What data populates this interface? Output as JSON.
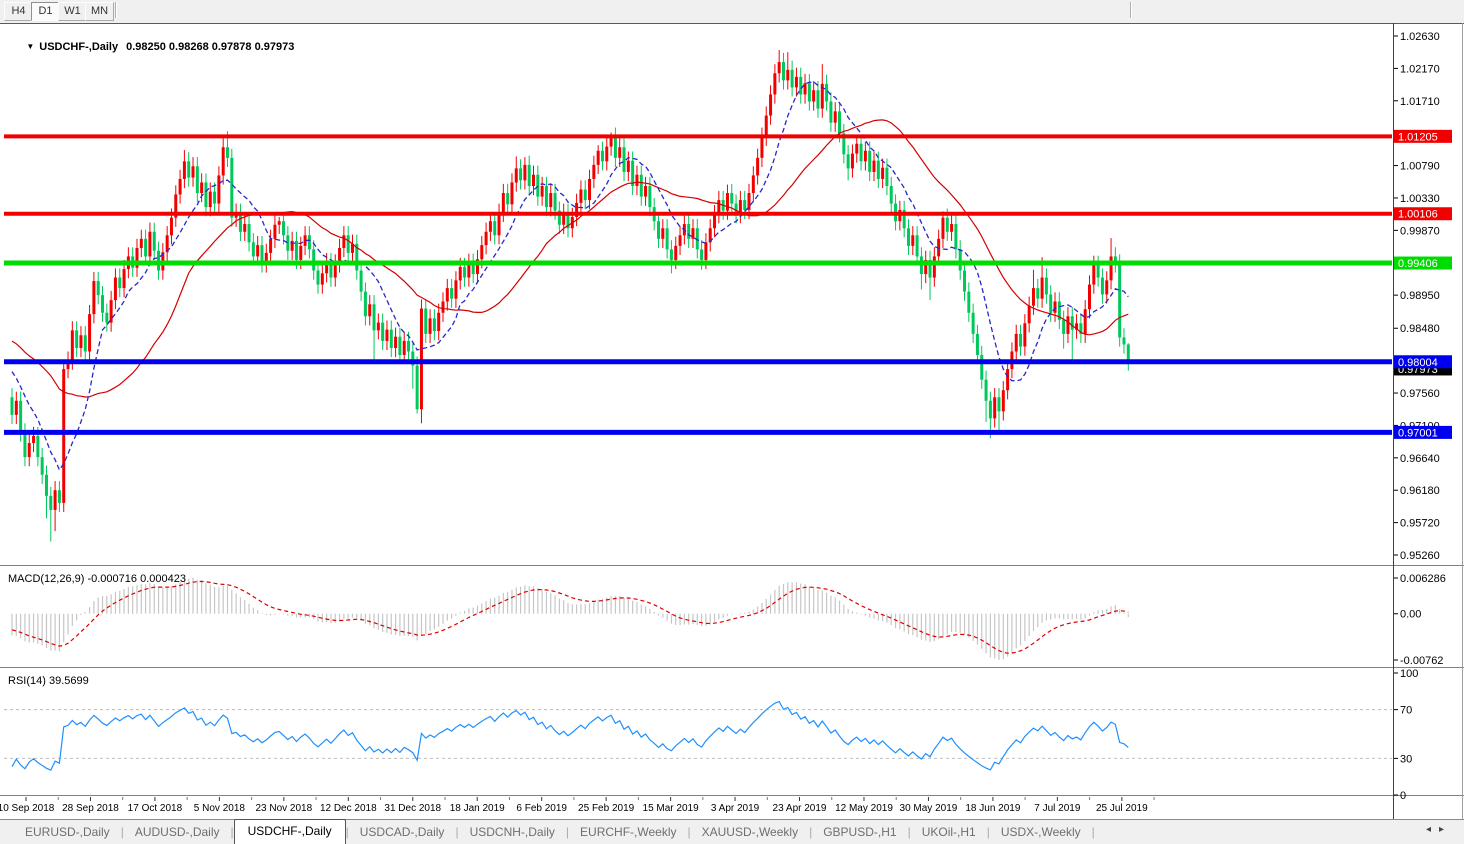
{
  "toolbar": {
    "buttons": [
      {
        "label": "H4",
        "active": false
      },
      {
        "label": "D1",
        "active": true
      },
      {
        "label": "W1",
        "active": false
      },
      {
        "label": "MN",
        "active": false
      }
    ]
  },
  "chart": {
    "title_symbol": "USDCHF-,Daily",
    "title_values": "0.98250 0.98268 0.97878 0.97973",
    "macd_label": "MACD(12,26,9) -0.000716 0.000423",
    "rsi_label": "RSI(14) 39.5699"
  },
  "price_axis": {
    "ticks": [
      "1.02630",
      "1.02170",
      "1.01710",
      "1.00790",
      "1.00330",
      "0.99870",
      "0.98950",
      "0.98480",
      "0.97560",
      "0.97100",
      "0.96640",
      "0.96180",
      "0.95720",
      "0.95260"
    ],
    "current_price": {
      "label": "0.97973",
      "bg": "#000000",
      "fg": "#ffffff"
    }
  },
  "macd_axis": {
    "top": "0.006286",
    "zero": "0.00",
    "bottom": "-0.00762"
  },
  "rsi_axis": {
    "labels": [
      "100",
      "70",
      "30",
      "0"
    ],
    "values": [
      100,
      70,
      30,
      0
    ],
    "level_lines": [
      70,
      30
    ]
  },
  "dates": [
    "10 Sep 2018",
    "28 Sep 2018",
    "17 Oct 2018",
    "5 Nov 2018",
    "23 Nov 2018",
    "12 Dec 2018",
    "31 Dec 2018",
    "18 Jan 2019",
    "6 Feb 2019",
    "25 Feb 2019",
    "15 Mar 2019",
    "3 Apr 2019",
    "23 Apr 2019",
    "12 May 2019",
    "30 May 2019",
    "18 Jun 2019",
    "7 Jul 2019",
    "25 Jul 2019"
  ],
  "tabs": {
    "items": [
      {
        "label": "EURUSD-,Daily",
        "active": false
      },
      {
        "label": "AUDUSD-,Daily",
        "active": false
      },
      {
        "label": "USDCHF-,Daily",
        "active": true
      },
      {
        "label": "USDCAD-,Daily",
        "active": false
      },
      {
        "label": "USDCNH-,Daily",
        "active": false
      },
      {
        "label": "EURCHF-,Weekly",
        "active": false
      },
      {
        "label": "XAUUSD-,Weekly",
        "active": false
      },
      {
        "label": "GBPUSD-,H1",
        "active": false
      },
      {
        "label": "UKOil-,H1",
        "active": false
      },
      {
        "label": "USDX-,Weekly",
        "active": false
      }
    ]
  },
  "tabs_nav": {
    "left": "◂",
    "right": "▸"
  },
  "chart_data": {
    "type": "candlestick",
    "symbol": "USDCHF",
    "timeframe": "Daily",
    "ohlc_display": {
      "open": 0.9825,
      "high": 0.98268,
      "low": 0.97878,
      "close": 0.97973
    },
    "indicators": {
      "ma_fast_period": 10,
      "ma_slow_period": 30,
      "macd": [
        12,
        26,
        9
      ],
      "macd_values": [
        -0.000716,
        0.000423
      ],
      "rsi_period": 14,
      "rsi_value": 39.5699
    },
    "price_range": {
      "top": 1.0263,
      "bottom": 0.9526
    },
    "levels": [
      {
        "price": 1.01205,
        "label": "1.01205",
        "color": "#f20000",
        "width": 4
      },
      {
        "price": 1.00106,
        "label": "1.00106",
        "color": "#f20000",
        "width": 4
      },
      {
        "price": 0.99406,
        "label": "0.99406",
        "color": "#00dc00",
        "width": 5
      },
      {
        "price": 0.98004,
        "label": "0.98004",
        "color": "#0000f0",
        "width": 5
      },
      {
        "price": 0.97001,
        "label": "0.97001",
        "color": "#0000f0",
        "width": 5
      }
    ],
    "colors": {
      "bull": "#f20000",
      "bear": "#00c85a",
      "ma_fast": "#2828c8",
      "ma_slow": "#d40000",
      "macd_hist": "#c6c6c6",
      "macd_signal": "#e00000",
      "rsi": "#1e90ff",
      "rsi_levels": "#bcbcbc"
    },
    "default_wick": 0.0013,
    "warmup_closes": [
      0.99,
      0.989,
      0.9905,
      0.988,
      0.987,
      0.9885,
      0.986,
      0.9845,
      0.986,
      0.984,
      0.9825,
      0.984,
      0.982,
      0.98,
      0.9812,
      0.979,
      0.9775,
      0.9788,
      0.9765,
      0.975
    ],
    "closes": [
      0.9725,
      0.9745,
      0.97,
      0.9665,
      0.9685,
      0.9695,
      0.9665,
      0.964,
      0.961,
      0.959,
      0.9618,
      0.96,
      0.979,
      0.9802,
      0.9845,
      0.982,
      0.9838,
      0.9815,
      0.9868,
      0.9915,
      0.9895,
      0.987,
      0.9856,
      0.9888,
      0.992,
      0.9905,
      0.9932,
      0.995,
      0.9934,
      0.9962,
      0.9975,
      0.995,
      0.9985,
      0.9958,
      0.993,
      0.9956,
      0.998,
      1.0005,
      1.0038,
      1.006,
      1.0085,
      1.0062,
      1.0078,
      1.004,
      1.0055,
      1.002,
      1.0042,
      1.0025,
      1.0065,
      1.0105,
      1.009,
      1.0005,
      1.0012,
      0.9985,
      0.9996,
      0.997,
      0.995,
      0.9966,
      0.994,
      0.9955,
      0.9975,
      0.9995,
      1.0,
      0.998,
      0.9958,
      0.9972,
      0.9945,
      0.9965,
      0.998,
      0.996,
      0.993,
      0.991,
      0.9926,
      0.9942,
      0.992,
      0.994,
      0.9962,
      0.998,
      0.9955,
      0.9968,
      0.993,
      0.99,
      0.9865,
      0.9882,
      0.9845,
      0.9856,
      0.983,
      0.9846,
      0.982,
      0.9836,
      0.981,
      0.983,
      0.9815,
      0.9795,
      0.9733,
      0.9876,
      0.984,
      0.9862,
      0.9844,
      0.987,
      0.9886,
      0.9905,
      0.989,
      0.9916,
      0.9935,
      0.992,
      0.9941,
      0.9925,
      0.9946,
      0.9966,
      0.9985,
      1.0,
      0.998,
      1.0012,
      1.004,
      1.0024,
      1.0055,
      1.0075,
      1.0058,
      1.008,
      1.005,
      1.0066,
      1.0035,
      1.005,
      1.002,
      1.004,
      1.0015,
      0.9995,
      1.0012,
      0.999,
      1.0006,
      1.0026,
      1.0045,
      1.003,
      1.006,
      1.008,
      1.01,
      1.0085,
      1.0106,
      1.012,
      1.009,
      1.0105,
      1.007,
      1.0086,
      1.005,
      1.0066,
      1.0035,
      1.005,
      1.002,
      1.0,
      0.9975,
      0.999,
      0.996,
      0.9945,
      0.9965,
      0.998,
      0.9996,
      0.9975,
      0.999,
      0.996,
      0.9945,
      0.997,
      0.999,
      1.001,
      1.003,
      1.0015,
      1.004,
      1.0025,
      1.001,
      1.003,
      1.0016,
      1.004,
      1.0065,
      1.009,
      1.012,
      1.015,
      1.018,
      1.021,
      1.0226,
      1.02,
      1.0215,
      1.019,
      1.0205,
      1.018,
      1.0196,
      1.017,
      1.0186,
      1.016,
      1.0195,
      1.017,
      1.014,
      1.0156,
      1.0125,
      1.0095,
      1.0075,
      1.0096,
      1.011,
      1.0085,
      1.01,
      1.007,
      1.0086,
      1.006,
      1.0076,
      1.005,
      1.0025,
      1.0,
      1.0016,
      0.999,
      0.9965,
      0.998,
      0.995,
      0.9925,
      0.9945,
      0.992,
      0.995,
      0.9975,
      1.0005,
      0.9985,
      0.9996,
      0.996,
      0.993,
      0.99,
      0.987,
      0.984,
      0.981,
      0.9775,
      0.9745,
      0.972,
      0.975,
      0.973,
      0.976,
      0.979,
      0.9815,
      0.984,
      0.9822,
      0.9855,
      0.988,
      0.9905,
      0.989,
      0.992,
      0.9896,
      0.987,
      0.9886,
      0.986,
      0.984,
      0.9865,
      0.9846,
      0.9855,
      0.984,
      0.9875,
      0.991,
      0.9938,
      0.992,
      0.9896,
      0.9916,
      0.995,
      0.994,
      0.9835,
      0.9825,
      0.97973
    ],
    "wick_overrides": {
      "8": {
        "l": 0.9578
      },
      "9": {
        "l": 0.9545
      },
      "10": {
        "l": 0.956
      },
      "40": {
        "h": 1.0101
      },
      "49": {
        "h": 1.0118
      },
      "50": {
        "h": 1.0128
      },
      "62": {
        "h": 1.0006
      },
      "84": {
        "l": 0.9799
      },
      "93": {
        "l": 0.9762
      },
      "94": {
        "l": 0.9727
      },
      "95": {
        "l": 0.9713
      },
      "117": {
        "h": 1.0092
      },
      "119": {
        "h": 1.0091
      },
      "136": {
        "h": 1.0108
      },
      "139": {
        "h": 1.0126
      },
      "153": {
        "l": 0.9926
      },
      "160": {
        "l": 0.9931
      },
      "166": {
        "h": 1.0052
      },
      "178": {
        "h": 1.0243
      },
      "180": {
        "h": 1.024
      },
      "188": {
        "h": 1.0223
      },
      "194": {
        "l": 1.0058
      },
      "211": {
        "l": 0.9903
      },
      "213": {
        "l": 0.9888
      },
      "216": {
        "h": 1.0014
      },
      "226": {
        "l": 0.9715
      },
      "227": {
        "l": 0.9692
      },
      "229": {
        "l": 0.9699
      },
      "237": {
        "h": 0.9931
      },
      "239": {
        "h": 0.9949
      },
      "244": {
        "l": 0.9819
      },
      "246": {
        "l": 0.9801
      },
      "255": {
        "h": 0.9976
      },
      "259": {
        "h": 0.98268,
        "l": 0.97878
      }
    }
  }
}
